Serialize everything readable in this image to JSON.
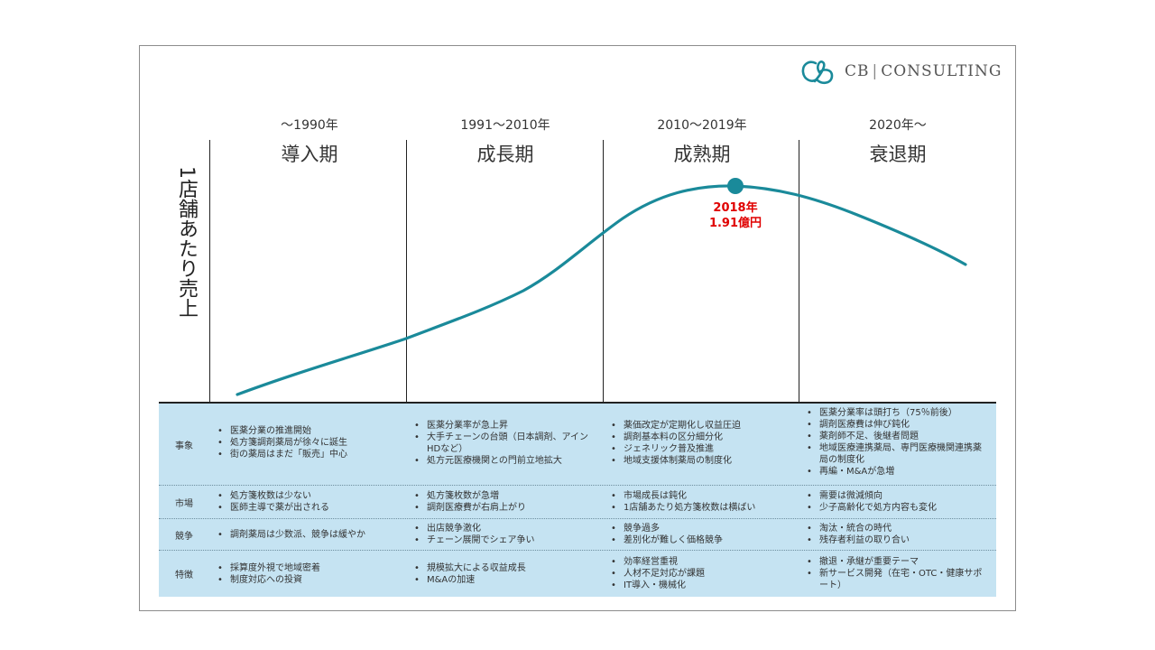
{
  "brand": {
    "name_left": "CB",
    "name_right": "CONSULTING",
    "accent_color": "#1a8a9a"
  },
  "y_axis_label": "1店舗あたり売上",
  "phases": [
    {
      "years": "～1990年",
      "name": "導入期"
    },
    {
      "years": "1991～2010年",
      "name": "成長期"
    },
    {
      "years": "2010～2019年",
      "name": "成熟期"
    },
    {
      "years": "2020年～",
      "name": "衰退期"
    }
  ],
  "peak": {
    "year": "2018年",
    "value": "1.91億円",
    "color": "#e00000"
  },
  "table": {
    "rows": [
      {
        "label": "事象",
        "cells": [
          [
            "医薬分業の推進開始",
            "処方箋調剤薬局が徐々に誕生",
            "街の薬局はまだ「販売」中心"
          ],
          [
            "医薬分業率が急上昇",
            "大手チェーンの台頭（日本調剤、アインHDなど）",
            "処方元医療機関との門前立地拡大"
          ],
          [
            "薬価改定が定期化し収益圧迫",
            "調剤基本料の区分細分化",
            "ジェネリック普及推進",
            "地域支援体制薬局の制度化"
          ],
          [
            "医薬分業率は頭打ち（75％前後）",
            "調剤医療費は伸び鈍化",
            "薬剤師不足、後継者問題",
            "地域医療連携薬局、専門医療機関連携薬局の制度化",
            "再編・M&Aが急増"
          ]
        ]
      },
      {
        "label": "市場",
        "cells": [
          [
            "処方箋枚数は少ない",
            "医師主導で薬が出される"
          ],
          [
            "処方箋枚数が急増",
            "調剤医療費が右肩上がり"
          ],
          [
            "市場成長は鈍化",
            "1店舗あたり処方箋枚数は横ばい"
          ],
          [
            "需要は微減傾向",
            "少子高齢化で処方内容も変化"
          ]
        ]
      },
      {
        "label": "競争",
        "cells": [
          [
            "調剤薬局は少数派、競争は緩やか"
          ],
          [
            "出店競争激化",
            "チェーン展開でシェア争い"
          ],
          [
            "競争過多",
            "差別化が難しく価格競争"
          ],
          [
            "淘汰・統合の時代",
            "残存者利益の取り合い"
          ]
        ]
      },
      {
        "label": "特徴",
        "cells": [
          [
            "採算度外視で地域密着",
            "制度対応への投資"
          ],
          [
            "規模拡大による収益成長",
            "M&Aの加速"
          ],
          [
            "効率経営重視",
            "人材不足対応が課題",
            "IT導入・機械化"
          ],
          [
            "撤退・承継が重要テーマ",
            "新サービス開発（在宅・OTC・健康サポート）"
          ]
        ]
      }
    ]
  }
}
